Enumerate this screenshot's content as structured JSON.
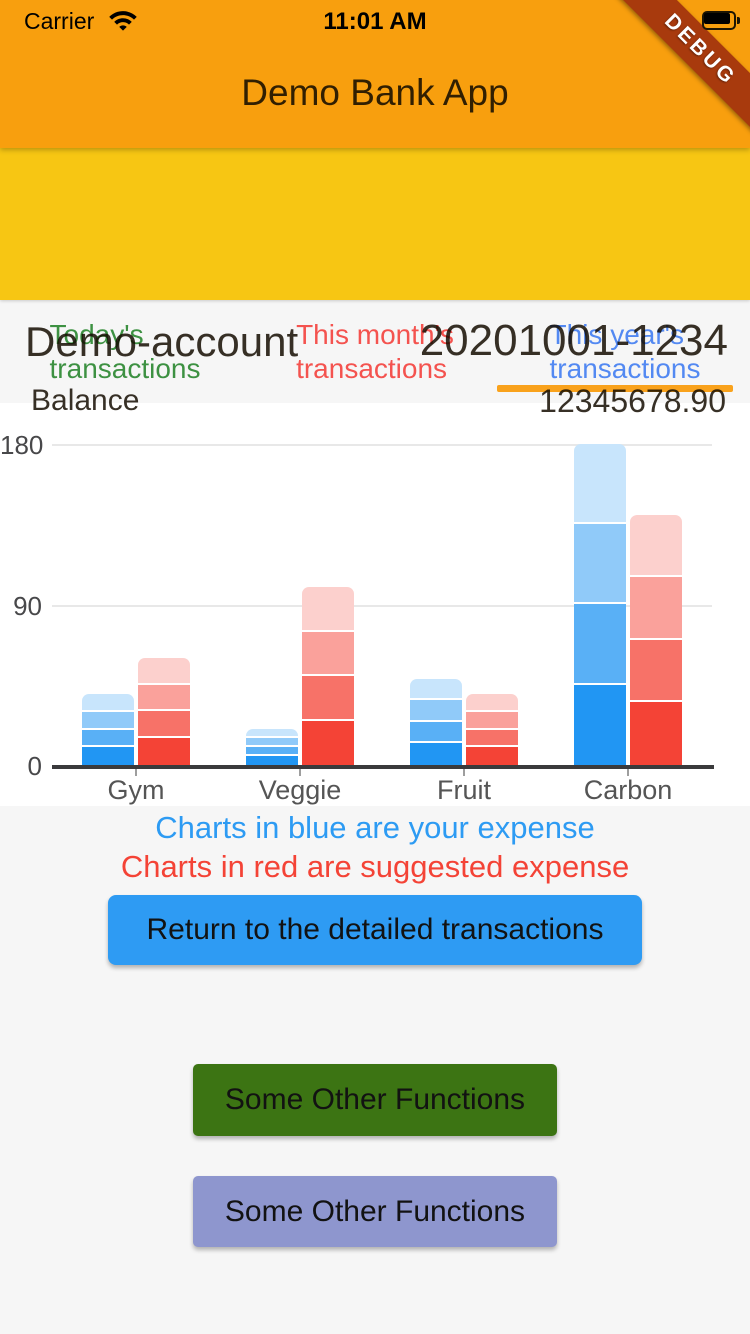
{
  "status_bar": {
    "carrier": "Carrier",
    "time": "11:01 AM"
  },
  "debug_banner": {
    "label": "DEBUG",
    "background": "#A83A0D"
  },
  "header": {
    "title": "Demo Bank App",
    "background": "#F89F0E"
  },
  "account": {
    "name": "Demo-account",
    "number": "20201001-1234",
    "balance_label": "Balance",
    "balance_value": "12345678.90",
    "background": "#F7C613"
  },
  "tabs": [
    {
      "line1": "Today's",
      "line2": "transactions",
      "color": "#3D9142",
      "active": false
    },
    {
      "line1": "This month's",
      "line2": "transactions",
      "color": "#F4534F",
      "active": false
    },
    {
      "line1": "This year's",
      "line2": "transactions",
      "color": "#5389F2",
      "active": true
    }
  ],
  "tab_indicator_color": "#F9A21C",
  "chart_data": {
    "type": "stacked-bar",
    "categories": [
      "Gym",
      "Veggie",
      "Fruit",
      "Carbon"
    ],
    "yticks": [
      0,
      90,
      180
    ],
    "ylim": [
      0,
      180
    ],
    "grid": true,
    "legend_position": "none",
    "series": [
      {
        "name": "your expense",
        "base_color": "#2196F3",
        "segment_colors": [
          "#2196F3",
          "#59B0F6",
          "#90CAF9",
          "#C8E5FC"
        ],
        "stacks": [
          [
            10,
            10,
            10,
            10
          ],
          [
            5,
            5,
            5,
            5
          ],
          [
            12,
            12,
            12,
            12
          ],
          [
            45,
            45,
            45,
            45
          ]
        ],
        "totals": [
          40,
          20,
          48,
          180
        ]
      },
      {
        "name": "suggested expense",
        "base_color": "#F44336",
        "segment_colors": [
          "#F44336",
          "#F77268",
          "#FAA19B",
          "#FCD0CD"
        ],
        "stacks": [
          [
            15,
            15,
            15,
            15
          ],
          [
            25,
            25,
            25,
            25
          ],
          [
            10,
            10,
            10,
            10
          ],
          [
            35,
            35,
            35,
            35
          ]
        ],
        "totals": [
          60,
          100,
          40,
          140
        ]
      }
    ]
  },
  "notes": {
    "blue": {
      "text": "Charts in blue are your expense",
      "color": "#2D9BF3"
    },
    "red": {
      "text": "Charts in red are suggested expense",
      "color": "#F44336"
    }
  },
  "buttons": {
    "return": {
      "label": "Return to the detailed transactions",
      "background": "#2E9BF3"
    },
    "other1": {
      "label": "Some Other Functions",
      "background": "#3C7413"
    },
    "other2": {
      "label": "Some Other Functions",
      "background": "#8E96CE"
    }
  }
}
